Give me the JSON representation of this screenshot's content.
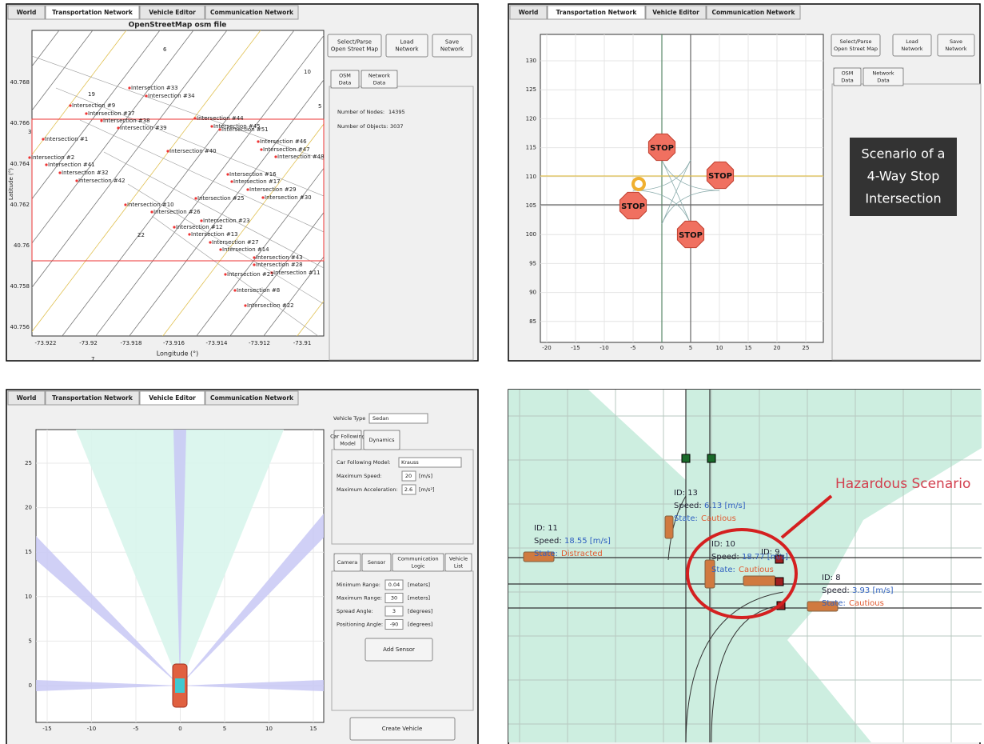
{
  "top_left": {
    "tabs": [
      "World",
      "Transportation Network",
      "Vehicle Editor",
      "Communication Network"
    ],
    "plot_title": "OpenStreetMap osm file",
    "x_label": "Longitude (°)",
    "y_label": "Latitude (°)",
    "x_ticks": [
      "-73.922",
      "-73.92",
      "-73.918",
      "-73.916",
      "-73.914",
      "-73.912",
      "-73.91"
    ],
    "y_ticks": [
      "40.768",
      "40.766",
      "40.764",
      "40.762",
      "40.76",
      "40.758",
      "40.756"
    ],
    "buttons": [
      [
        "Select/Parse",
        "Open Street Map"
      ],
      [
        "Load",
        "Network"
      ],
      [
        "Save",
        "Network"
      ]
    ],
    "subtabs": [
      [
        "OSM",
        "Data"
      ],
      [
        "Network",
        "Data"
      ]
    ],
    "info": [
      {
        "label": "Number of Nodes:",
        "value": "14395"
      },
      {
        "label": "Number of Objects:",
        "value": "3037"
      }
    ],
    "road_labels": [
      "6",
      "10",
      "19",
      "3",
      "5",
      "22",
      "7"
    ],
    "intersections": [
      "Intersection #33",
      "Intersection #34",
      "Intersection #9",
      "Intersection #37",
      "Intersection #38",
      "Intersection #39",
      "Intersection #44",
      "Intersection #45",
      "Intersection #51",
      "Intersection #1",
      "Intersection #40",
      "Intersection #2",
      "Intersection #41",
      "Intersection #46",
      "Intersection #47",
      "Intersection #48",
      "Intersection #32",
      "Intersection #42",
      "Intersection #16",
      "Intersection #17",
      "Intersection #29",
      "Intersection #25",
      "Intersection #30",
      "Intersection #10",
      "Intersection #26",
      "Intersection #23",
      "Intersection #12",
      "Intersection #13",
      "Intersection #27",
      "Intersection #14",
      "Intersection #43",
      "Intersection #28",
      "Intersection #11",
      "Intersection #21",
      "Intersection #8",
      "Intersection #22"
    ]
  },
  "top_right": {
    "tabs": [
      "World",
      "Transportation Network",
      "Vehicle Editor",
      "Communication Network"
    ],
    "buttons": [
      [
        "Select/Parse",
        "Open Street Map"
      ],
      [
        "Load",
        "Network"
      ],
      [
        "Save",
        "Network"
      ]
    ],
    "subtabs": [
      [
        "OSM",
        "Data"
      ],
      [
        "Network",
        "Data"
      ]
    ],
    "x_ticks": [
      "-20",
      "-15",
      "-10",
      "-5",
      "0",
      "5",
      "10",
      "15",
      "20",
      "25"
    ],
    "y_ticks": [
      "130",
      "125",
      "120",
      "115",
      "110",
      "105",
      "100",
      "95",
      "90",
      "85"
    ],
    "stop_signs": [
      "STOP",
      "STOP",
      "STOP",
      "STOP"
    ],
    "caption": [
      "Scenario of a",
      "4-Way Stop",
      "Intersection"
    ]
  },
  "bottom_left": {
    "tabs": [
      "World",
      "Transportation Network",
      "Vehicle Editor",
      "Communication Network"
    ],
    "x_ticks": [
      "-15",
      "-10",
      "-5",
      "0",
      "5",
      "10",
      "15"
    ],
    "y_ticks": [
      "0",
      "5",
      "10",
      "15",
      "20",
      "25"
    ],
    "vehicle_type_label": "Vehicle Type",
    "vehicle_type": "Sedan",
    "model_tabs": [
      [
        "Car Following",
        "Model"
      ],
      [
        "Dynamics"
      ]
    ],
    "model_fields": [
      {
        "label": "Car Following Model:",
        "value": "Krauss"
      },
      {
        "label": "Maximum Speed:",
        "value": "20",
        "unit": "[m/s]"
      },
      {
        "label": "Maximum Acceleration:",
        "value": "2.6",
        "unit": "[m/s²]"
      }
    ],
    "sensor_tabs": [
      [
        "Camera"
      ],
      [
        "Sensor"
      ],
      [
        "Communication",
        "Logic"
      ],
      [
        "Vehicle",
        "List"
      ]
    ],
    "sensor_fields": [
      {
        "label": "Minimum Range:",
        "value": "0.04",
        "unit": "[meters]"
      },
      {
        "label": "Maximum Range:",
        "value": "30",
        "unit": "[meters]"
      },
      {
        "label": "Spread Angle:",
        "value": "3",
        "unit": "[degrees]"
      },
      {
        "label": "Positioning Angle:",
        "value": "-90",
        "unit": "[degrees]"
      }
    ],
    "add_sensor": "Add Sensor",
    "create_vehicle": "Create Vehicle"
  },
  "bottom_right": {
    "title": "Hazardous Scenario",
    "vehicles": [
      {
        "id": "ID: 11",
        "speed_label": "Speed:",
        "speed": "18.55 [m/s]",
        "state_label": "State:",
        "state": "Distracted"
      },
      {
        "id": "ID: 13",
        "speed_label": "Speed:",
        "speed": "6.13 [m/s]",
        "state_label": "State:",
        "state": "Cautious"
      },
      {
        "id": "ID: 10",
        "speed_label": "Speed:",
        "speed": "18.77 [m/s]",
        "state_label": "State:",
        "state": "Cautious"
      },
      {
        "id": "ID: 9"
      },
      {
        "id": "ID: 8",
        "speed_label": "Speed:",
        "speed": "3.93 [m/s]",
        "state_label": "State:",
        "state": "Cautious"
      }
    ]
  }
}
